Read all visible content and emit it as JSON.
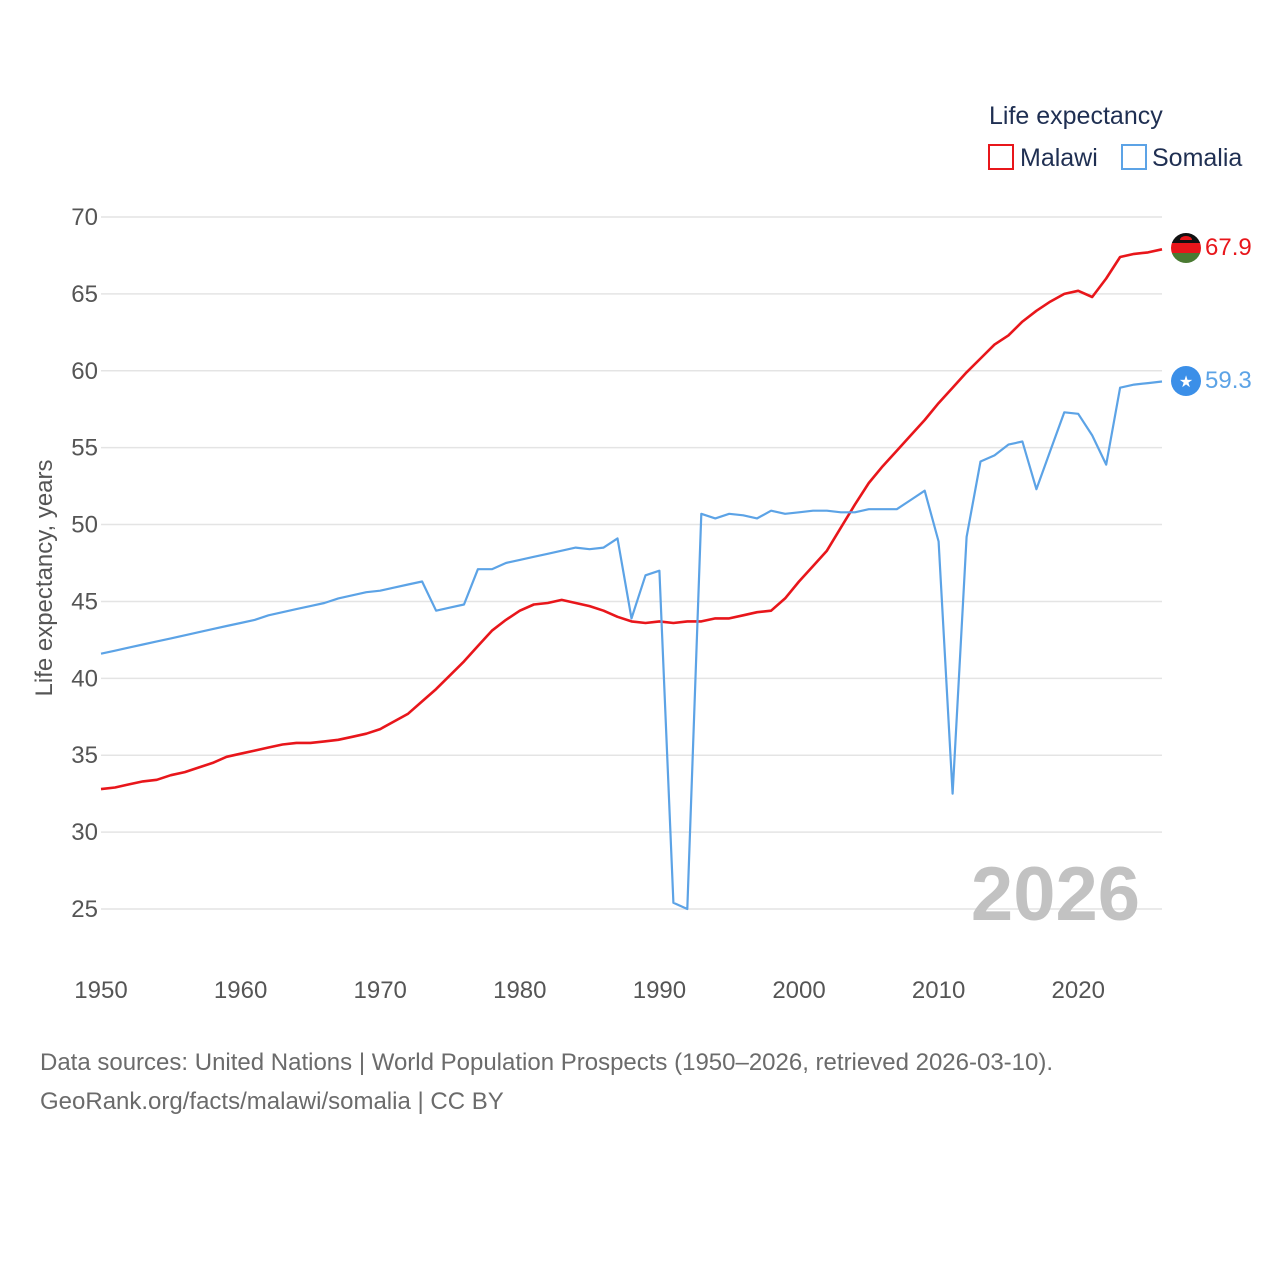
{
  "chart_data": {
    "type": "line",
    "title": "",
    "ylabel": "Life expectancy, years",
    "xlabel": "",
    "xlim": [
      1950,
      2026
    ],
    "ylim": [
      25,
      70
    ],
    "yticks": [
      25,
      30,
      35,
      40,
      45,
      50,
      55,
      60,
      65,
      70
    ],
    "xticks": [
      1950,
      1960,
      1970,
      1980,
      1990,
      2000,
      2010,
      2020
    ],
    "legend_title": "Life expectancy",
    "legend_position": "top-right",
    "year_label": "2026",
    "series": [
      {
        "name": "Malawi",
        "color": "#e8161b",
        "end_label": "67.9",
        "x": [
          1950,
          1951,
          1952,
          1953,
          1954,
          1955,
          1956,
          1957,
          1958,
          1959,
          1960,
          1961,
          1962,
          1963,
          1964,
          1965,
          1966,
          1967,
          1968,
          1969,
          1970,
          1971,
          1972,
          1973,
          1974,
          1975,
          1976,
          1977,
          1978,
          1979,
          1980,
          1981,
          1982,
          1983,
          1984,
          1985,
          1986,
          1987,
          1988,
          1989,
          1990,
          1991,
          1992,
          1993,
          1994,
          1995,
          1996,
          1997,
          1998,
          1999,
          2000,
          2001,
          2002,
          2003,
          2004,
          2005,
          2006,
          2007,
          2008,
          2009,
          2010,
          2011,
          2012,
          2013,
          2014,
          2015,
          2016,
          2017,
          2018,
          2019,
          2020,
          2021,
          2022,
          2023,
          2024,
          2025,
          2026
        ],
        "values": [
          32.8,
          32.9,
          33.1,
          33.3,
          33.4,
          33.7,
          33.9,
          34.2,
          34.5,
          34.9,
          35.1,
          35.3,
          35.5,
          35.7,
          35.8,
          35.8,
          35.9,
          36.0,
          36.2,
          36.4,
          36.7,
          37.2,
          37.7,
          38.5,
          39.3,
          40.2,
          41.1,
          42.1,
          43.1,
          43.8,
          44.4,
          44.8,
          44.9,
          45.1,
          44.9,
          44.7,
          44.4,
          44.0,
          43.7,
          43.6,
          43.7,
          43.6,
          43.7,
          43.7,
          43.9,
          43.9,
          44.1,
          44.3,
          44.4,
          45.2,
          46.3,
          47.3,
          48.3,
          49.8,
          51.3,
          52.7,
          53.8,
          54.8,
          55.8,
          56.8,
          57.9,
          58.9,
          59.9,
          60.8,
          61.7,
          62.3,
          63.2,
          63.9,
          64.5,
          65.0,
          65.2,
          64.8,
          66.0,
          67.4,
          67.6,
          67.7,
          67.9
        ]
      },
      {
        "name": "Somalia",
        "color": "#5ca3e6",
        "end_label": "59.3",
        "x": [
          1950,
          1951,
          1952,
          1953,
          1954,
          1955,
          1956,
          1957,
          1958,
          1959,
          1960,
          1961,
          1962,
          1963,
          1964,
          1965,
          1966,
          1967,
          1968,
          1969,
          1970,
          1971,
          1972,
          1973,
          1974,
          1975,
          1976,
          1977,
          1978,
          1979,
          1980,
          1981,
          1982,
          1983,
          1984,
          1985,
          1986,
          1987,
          1988,
          1989,
          1990,
          1991,
          1992,
          1993,
          1994,
          1995,
          1996,
          1997,
          1998,
          1999,
          2000,
          2001,
          2002,
          2003,
          2004,
          2005,
          2006,
          2007,
          2008,
          2009,
          2010,
          2011,
          2012,
          2013,
          2014,
          2015,
          2016,
          2017,
          2018,
          2019,
          2020,
          2021,
          2022,
          2023,
          2024,
          2025,
          2026
        ],
        "values": [
          41.6,
          41.8,
          42.0,
          42.2,
          42.4,
          42.6,
          42.8,
          43.0,
          43.2,
          43.4,
          43.6,
          43.8,
          44.1,
          44.3,
          44.5,
          44.7,
          44.9,
          45.2,
          45.4,
          45.6,
          45.7,
          45.9,
          46.1,
          46.3,
          44.4,
          44.6,
          44.8,
          47.1,
          47.1,
          47.5,
          47.7,
          47.9,
          48.1,
          48.3,
          48.5,
          48.4,
          48.5,
          49.1,
          43.9,
          46.7,
          47.0,
          25.4,
          25.0,
          50.7,
          50.4,
          50.7,
          50.6,
          50.4,
          50.9,
          50.7,
          50.8,
          50.9,
          50.9,
          50.8,
          50.8,
          51.0,
          51.0,
          51.0,
          51.6,
          52.2,
          48.9,
          32.5,
          49.2,
          54.1,
          54.5,
          55.2,
          55.4,
          52.3,
          54.8,
          57.3,
          57.2,
          55.8,
          53.9,
          58.9,
          59.1,
          59.2,
          59.3
        ]
      }
    ]
  },
  "source": {
    "line1": "Data sources: United Nations | World Population Prospects (1950–2026, retrieved 2026-03-10).",
    "line2": "GeoRank.org/facts/malawi/somalia | CC BY"
  }
}
